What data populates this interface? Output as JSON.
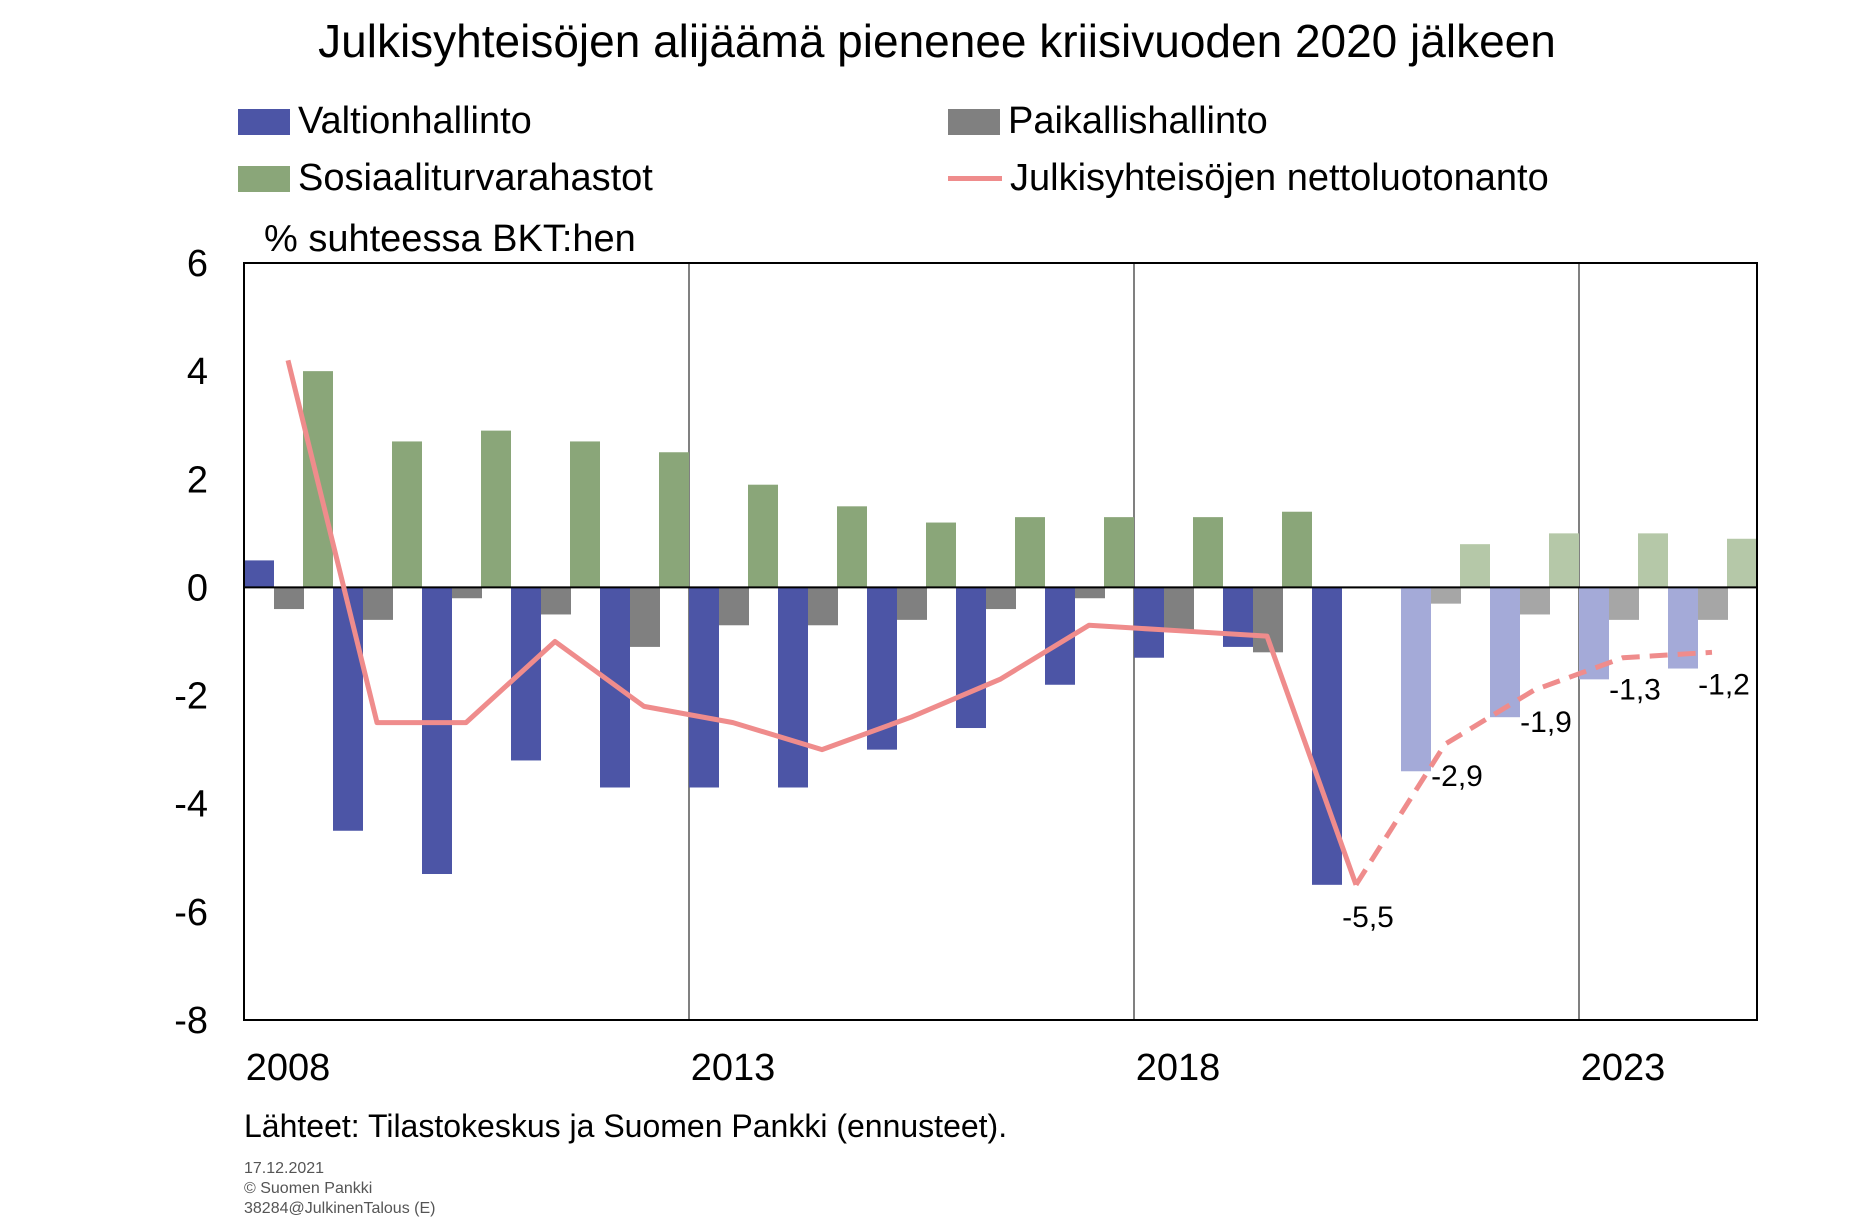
{
  "chart_data": {
    "type": "bar",
    "title": "Julkisyhteisöjen alijäämä pienenee kriisivuoden 2020 jälkeen",
    "ylabel": "% suhteessa BKT:hen",
    "ylim": [
      -8,
      6
    ],
    "yticks": [
      6,
      4,
      2,
      0,
      -2,
      -4,
      -6,
      -8
    ],
    "x": [
      2008,
      2009,
      2010,
      2011,
      2012,
      2013,
      2014,
      2015,
      2016,
      2017,
      2018,
      2019,
      2020,
      2021,
      2022,
      2023,
      2024
    ],
    "xticks": [
      2008,
      2013,
      2018,
      2023
    ],
    "forecast_from": 2021,
    "grid": true,
    "legend_placement": "top",
    "series": [
      {
        "name": "Valtionhallinto",
        "type": "bar",
        "color": "#4c55a6",
        "forecast_color": "#a4aad8",
        "values": [
          0.5,
          -4.5,
          -5.3,
          -3.2,
          -3.7,
          -3.7,
          -3.7,
          -3.0,
          -2.6,
          -1.8,
          -1.3,
          -1.1,
          -5.5,
          -3.4,
          -2.4,
          -1.7,
          -1.5
        ]
      },
      {
        "name": "Paikallishallinto",
        "type": "bar",
        "color": "#808080",
        "forecast_color": "#a6a6a6",
        "values": [
          -0.4,
          -0.6,
          -0.2,
          -0.5,
          -1.1,
          -0.7,
          -0.7,
          -0.6,
          -0.4,
          -0.2,
          -0.8,
          -1.2,
          0.0,
          -0.3,
          -0.5,
          -0.6,
          -0.6
        ]
      },
      {
        "name": "Sosiaaliturvarahastot",
        "type": "bar",
        "color": "#8aa679",
        "forecast_color": "#b5c8a8",
        "values": [
          4.0,
          2.7,
          2.9,
          2.7,
          2.5,
          1.9,
          1.5,
          1.2,
          1.3,
          1.3,
          1.3,
          1.4,
          0.0,
          0.8,
          1.0,
          1.0,
          0.9
        ]
      },
      {
        "name": "Julkisyhteisöjen nettoluotonanto",
        "type": "line",
        "color": "#ef8c8c",
        "values": [
          4.2,
          -2.5,
          -2.5,
          -1.0,
          -2.2,
          -2.5,
          -3.0,
          -2.4,
          -1.7,
          -0.7,
          -0.8,
          -0.9,
          -5.5,
          -2.9,
          -1.9,
          -1.3,
          -1.2
        ]
      }
    ],
    "data_labels": [
      {
        "x": 2020,
        "text": "-5,5"
      },
      {
        "x": 2021,
        "text": "-2,9"
      },
      {
        "x": 2022,
        "text": "-1,9"
      },
      {
        "x": 2023,
        "text": "-1,3"
      },
      {
        "x": 2024,
        "text": "-1,2"
      }
    ]
  },
  "source": "Lähteet: Tilastokeskus ja Suomen Pankki (ennusteet).",
  "footer": [
    "17.12.2021",
    "© Suomen Pankki",
    "38284@JulkinenTalous (E)"
  ]
}
